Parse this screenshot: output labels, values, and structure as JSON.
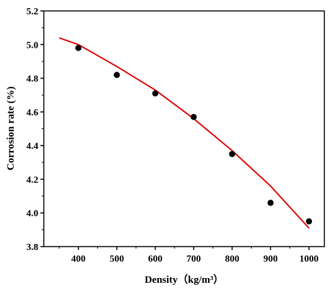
{
  "chart_data": {
    "type": "scatter",
    "xlabel": "Density（kg/m³）",
    "ylabel": "Corrosion rate (%)",
    "xlim": [
      310,
      1040
    ],
    "ylim": [
      3.8,
      5.2
    ],
    "x_ticks": [
      "400",
      "500",
      "600",
      "700",
      "800",
      "900",
      "1000"
    ],
    "y_ticks": [
      "3.8",
      "4.0",
      "4.2",
      "4.4",
      "4.6",
      "4.8",
      "5.0",
      "5.2"
    ],
    "series": [
      {
        "kind": "points",
        "color": "#000000",
        "x": [
          400,
          500,
          600,
          700,
          800,
          900,
          1000
        ],
        "y": [
          4.98,
          4.82,
          4.71,
          4.57,
          4.35,
          4.06,
          3.95
        ]
      },
      {
        "kind": "fit-line",
        "color": "#e00000",
        "x": [
          350,
          400,
          500,
          600,
          700,
          800,
          900,
          1000
        ],
        "y": [
          5.04,
          5.0,
          4.87,
          4.73,
          4.56,
          4.37,
          4.16,
          3.91
        ]
      }
    ],
    "grid": false,
    "legend": "none"
  }
}
